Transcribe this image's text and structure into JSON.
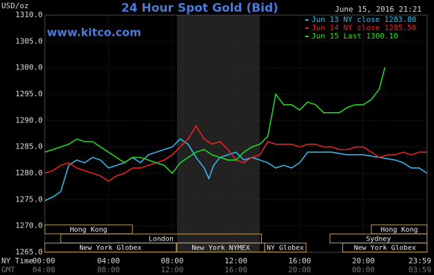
{
  "chart_data": {
    "type": "line",
    "title": "24 Hour Spot Gold (Bid)",
    "y_unit": "USD/oz",
    "source": "www.kitco.com",
    "timestamp": "June 15, 2016 21:21",
    "x_row_labels": [
      "NY Time",
      "GMT"
    ],
    "xlim": [
      0,
      24
    ],
    "ylim": [
      1265,
      1310
    ],
    "xticks": [
      {
        "value": 0,
        "label": "00:00"
      },
      {
        "value": 4,
        "label": "04:00"
      },
      {
        "value": 8,
        "label": "08:00"
      },
      {
        "value": 12,
        "label": "12:00"
      },
      {
        "value": 16,
        "label": "16:00"
      },
      {
        "value": 20,
        "label": "20:00"
      },
      {
        "value": 23.983,
        "label": "23:59"
      }
    ],
    "gmt_labels": [
      "04:00",
      "08:00",
      "12:00",
      "16:00",
      "20:00",
      "00:00",
      "03:59"
    ],
    "yticks": [
      {
        "value": 1310,
        "label": "1310.0"
      },
      {
        "value": 1305,
        "label": "1305.0"
      },
      {
        "value": 1300,
        "label": "1300.0"
      },
      {
        "value": 1295,
        "label": "1295.0"
      },
      {
        "value": 1290,
        "label": "1290.0"
      },
      {
        "value": 1285,
        "label": "1285.0"
      },
      {
        "value": 1280,
        "label": "1280.0"
      },
      {
        "value": 1275,
        "label": "1275.0"
      },
      {
        "value": 1270,
        "label": "1270.0"
      },
      {
        "value": 1265,
        "label": "1265.0"
      }
    ],
    "grid": true,
    "highlight_range": [
      8.3,
      13.5
    ],
    "session_rows": [
      [
        {
          "label": "Hong Kong",
          "start": 0,
          "end": 5.5
        },
        {
          "label": "Hong Kong",
          "start": 20.5,
          "end": 24
        }
      ],
      [
        {
          "label": "London",
          "start": 1,
          "end": 13.6
        },
        {
          "label": "Sydney",
          "start": 17.9,
          "end": 24
        }
      ],
      [
        {
          "label": "New York Globex",
          "start": 0,
          "end": 8.25
        },
        {
          "label": "New York NYMEX",
          "start": 8.3,
          "end": 13.8
        },
        {
          "label": "NY Globex",
          "start": 13.8,
          "end": 16.4
        },
        {
          "label": "New York Globex",
          "start": 18.7,
          "end": 24
        }
      ]
    ],
    "series": [
      {
        "name": "Jun 13 NY close 1283.80",
        "color": "#33bbee",
        "x": [
          0,
          0.5,
          1,
          1.5,
          2,
          2.5,
          3,
          3.5,
          4,
          4.5,
          5,
          5.5,
          6,
          6.5,
          7,
          7.5,
          8,
          8.5,
          9,
          9.5,
          10,
          10.3,
          10.6,
          11,
          11.5,
          12,
          12.5,
          13,
          13.5,
          14,
          14.5,
          15,
          15.5,
          16,
          16.5,
          17,
          18,
          19,
          20,
          21,
          22,
          22.5,
          23,
          23.5,
          24
        ],
        "values": [
          1274.8,
          1275.5,
          1276.5,
          1281.5,
          1282.5,
          1282,
          1283,
          1282.5,
          1281,
          1281.5,
          1282,
          1283,
          1282,
          1283.5,
          1284,
          1284.5,
          1285,
          1286.5,
          1285.5,
          1283,
          1281,
          1279,
          1281.5,
          1283,
          1283.5,
          1284,
          1282.5,
          1283,
          1282.5,
          1282,
          1281,
          1281.5,
          1281,
          1282,
          1284,
          1284,
          1284,
          1283.5,
          1283.5,
          1283,
          1282.5,
          1282,
          1281,
          1281,
          1280
        ]
      },
      {
        "name": "Jun 14 NY close 1285.50",
        "color": "#ee2222",
        "x": [
          0,
          0.5,
          1,
          1.5,
          2,
          2.5,
          3,
          3.5,
          4,
          4.5,
          5,
          5.5,
          6,
          6.5,
          7,
          7.5,
          8,
          8.5,
          9,
          9.5,
          10,
          10.5,
          11,
          11.5,
          12,
          12.5,
          13,
          13.5,
          14,
          14.5,
          15,
          15.5,
          16,
          16.5,
          17,
          17.5,
          18,
          18.5,
          19,
          19.5,
          20,
          20.5,
          21,
          21.5,
          22,
          22.5,
          23,
          23.5,
          24
        ],
        "values": [
          1280,
          1280.5,
          1281.5,
          1282,
          1281,
          1280.5,
          1280,
          1279.5,
          1278.5,
          1279.5,
          1280,
          1281,
          1281,
          1281.5,
          1282,
          1282.5,
          1283.5,
          1285,
          1286.5,
          1289,
          1286.5,
          1285.5,
          1286,
          1284.5,
          1282.5,
          1282,
          1283,
          1283.5,
          1286,
          1285.5,
          1285.5,
          1285.5,
          1285,
          1285.5,
          1285.5,
          1285,
          1285,
          1284.5,
          1284.5,
          1285,
          1285,
          1284,
          1283,
          1283.5,
          1283.5,
          1284,
          1283.5,
          1284,
          1284
        ]
      },
      {
        "name": "Jun 15 Last 1300.10",
        "color": "#22dd22",
        "x": [
          0,
          0.5,
          1,
          1.5,
          2,
          2.5,
          3,
          3.5,
          4,
          4.5,
          5,
          5.5,
          6,
          6.5,
          7,
          7.5,
          8,
          8.5,
          9,
          9.5,
          10,
          10.5,
          11,
          11.5,
          12,
          12.5,
          13,
          13.5,
          14,
          14.5,
          15,
          15.5,
          16,
          16.5,
          17,
          17.5,
          18,
          18.5,
          19,
          19.5,
          20,
          20.5,
          21,
          21.35
        ],
        "values": [
          1284,
          1284.5,
          1285,
          1285.5,
          1286.5,
          1286,
          1286,
          1285,
          1284,
          1283,
          1282,
          1283,
          1283,
          1282.5,
          1282,
          1281.5,
          1280,
          1282,
          1283,
          1284,
          1284.5,
          1283.5,
          1283,
          1282.5,
          1282.5,
          1284,
          1285,
          1285.5,
          1287,
          1295,
          1293,
          1293,
          1292,
          1293.5,
          1293,
          1291.5,
          1291.5,
          1291.5,
          1292.5,
          1293,
          1293,
          1294,
          1296,
          1300.1
        ]
      }
    ]
  }
}
